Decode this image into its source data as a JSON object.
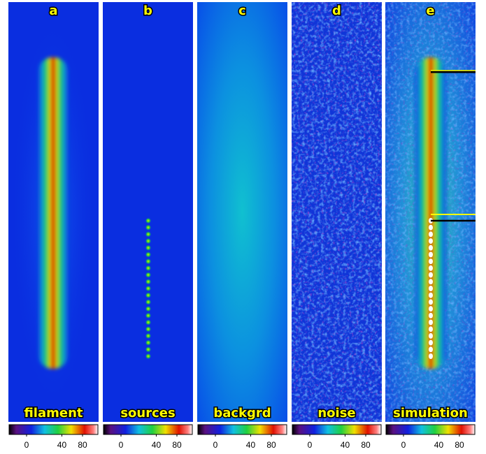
{
  "panels": [
    {
      "letter": "a",
      "label": "filament"
    },
    {
      "letter": "b",
      "label": "sources"
    },
    {
      "letter": "c",
      "label": "backgrd"
    },
    {
      "letter": "d",
      "label": "noise"
    },
    {
      "letter": "e",
      "label": "simulation"
    }
  ],
  "colorbar_ticks": [
    0,
    40,
    80
  ]
}
